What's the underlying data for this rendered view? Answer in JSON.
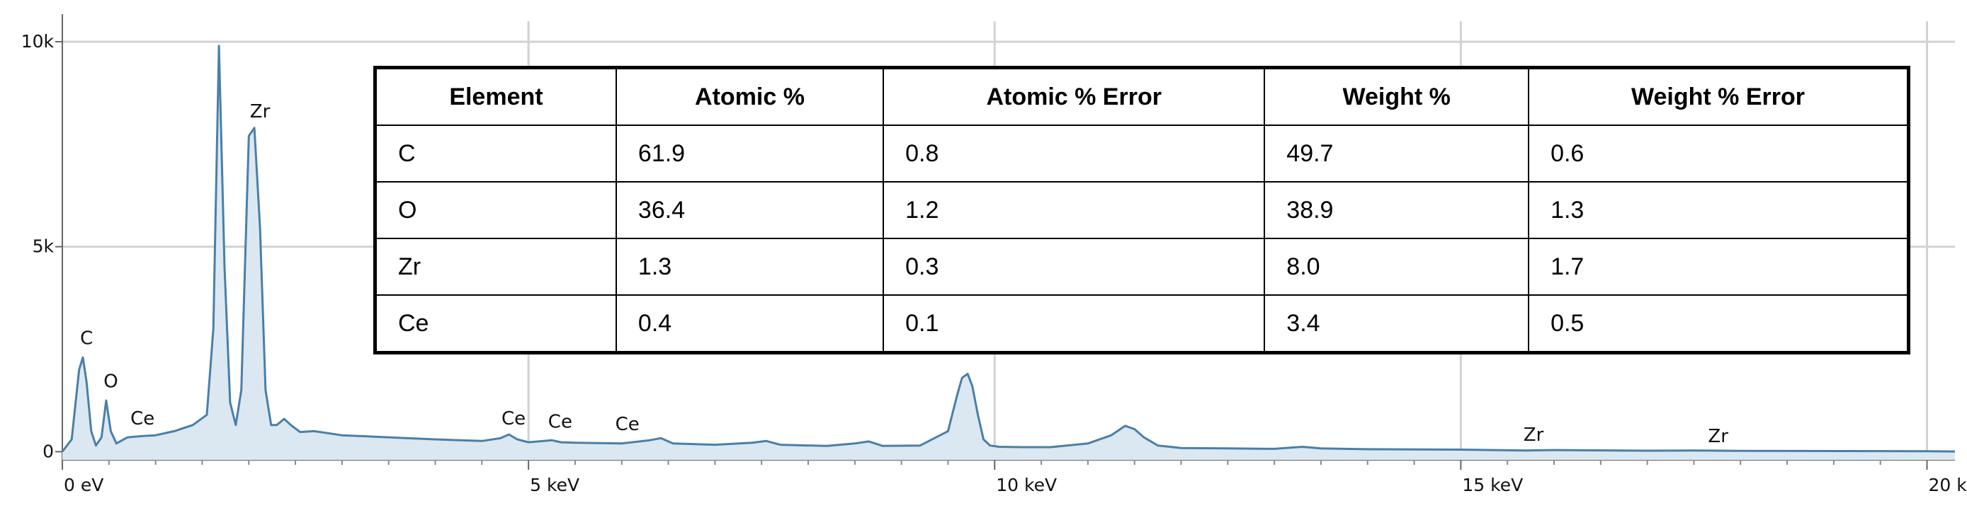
{
  "chart_data": {
    "type": "line",
    "title": "",
    "xlabel": "",
    "ylabel": "",
    "xlim": [
      0,
      20.3
    ],
    "ylim": [
      -200,
      10500
    ],
    "x_ticks": [
      {
        "value": 0,
        "label": "0 eV"
      },
      {
        "value": 5,
        "label": "5 keV"
      },
      {
        "value": 10,
        "label": "10 keV"
      },
      {
        "value": 15,
        "label": "15 keV"
      },
      {
        "value": 20,
        "label": "20 keV"
      }
    ],
    "y_ticks": [
      {
        "value": 0,
        "label": "0"
      },
      {
        "value": 5000,
        "label": "5k"
      },
      {
        "value": 10000,
        "label": "10k"
      }
    ],
    "grid": true,
    "line_color": "#4a7fa8",
    "fill_color": "#dbe8f2",
    "series": [
      {
        "x": [
          0.0,
          0.1,
          0.18,
          0.22,
          0.26,
          0.31,
          0.36,
          0.42,
          0.47,
          0.52,
          0.58,
          0.7,
          0.85,
          1.0,
          1.2,
          1.4,
          1.55,
          1.62,
          1.68,
          1.74,
          1.8,
          1.86,
          1.92,
          2.0,
          2.06,
          2.12,
          2.18,
          2.24,
          2.3,
          2.38,
          2.45,
          2.55,
          2.7,
          3.0,
          3.5,
          4.0,
          4.5,
          4.7,
          4.79,
          4.88,
          5.0,
          5.25,
          5.35,
          5.5,
          6.0,
          6.3,
          6.42,
          6.55,
          7.0,
          7.4,
          7.55,
          7.7,
          8.2,
          8.5,
          8.65,
          8.8,
          9.2,
          9.5,
          9.6,
          9.65,
          9.71,
          9.76,
          9.82,
          9.88,
          9.95,
          10.05,
          10.3,
          10.6,
          11.0,
          11.25,
          11.4,
          11.5,
          11.6,
          11.75,
          12.0,
          12.5,
          13.0,
          13.3,
          13.5,
          14.0,
          15.0,
          15.7,
          16.0,
          17.0,
          17.5,
          18.0,
          19.0,
          20.0,
          20.3
        ],
        "y": [
          0,
          300,
          2000,
          2300,
          1700,
          500,
          150,
          350,
          1250,
          500,
          200,
          350,
          380,
          400,
          500,
          650,
          900,
          3000,
          9900,
          4500,
          1200,
          650,
          1500,
          7700,
          7900,
          5500,
          1500,
          650,
          650,
          800,
          650,
          480,
          500,
          400,
          350,
          300,
          260,
          330,
          420,
          300,
          230,
          280,
          230,
          220,
          200,
          280,
          330,
          200,
          170,
          220,
          260,
          170,
          140,
          200,
          250,
          140,
          150,
          500,
          1400,
          1800,
          1900,
          1600,
          900,
          300,
          150,
          120,
          110,
          110,
          200,
          400,
          630,
          550,
          350,
          150,
          90,
          80,
          70,
          120,
          80,
          60,
          50,
          30,
          40,
          25,
          30,
          20,
          15,
          10,
          5
        ]
      }
    ],
    "peak_labels": [
      {
        "text": "C",
        "x": 0.26,
        "y": 2550
      },
      {
        "text": "O",
        "x": 0.52,
        "y": 1500
      },
      {
        "text": "Ce",
        "x": 0.86,
        "y": 590
      },
      {
        "text": "Zr",
        "x": 2.12,
        "y": 8080
      },
      {
        "text": "Ce",
        "x": 4.84,
        "y": 590
      },
      {
        "text": "Ce",
        "x": 5.34,
        "y": 520
      },
      {
        "text": "Ce",
        "x": 6.06,
        "y": 460
      },
      {
        "text": "Zr",
        "x": 15.78,
        "y": 200
      },
      {
        "text": "Zr",
        "x": 17.76,
        "y": 160
      }
    ]
  },
  "table": {
    "headers": [
      "Element",
      "Atomic %",
      "Atomic % Error",
      "Weight %",
      "Weight % Error"
    ],
    "rows": [
      [
        "C",
        "61.9",
        "0.8",
        "49.7",
        "0.6"
      ],
      [
        "O",
        "36.4",
        "1.2",
        "38.9",
        "1.3"
      ],
      [
        "Zr",
        "1.3",
        "0.3",
        "8.0",
        "1.7"
      ],
      [
        "Ce",
        "0.4",
        "0.1",
        "3.4",
        "0.5"
      ]
    ]
  }
}
